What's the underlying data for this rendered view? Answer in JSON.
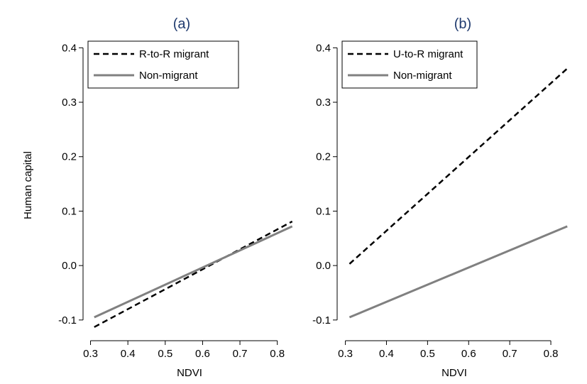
{
  "chart_data": [
    {
      "type": "line",
      "title": "(a)",
      "xlabel": "NDVI",
      "ylabel": "Human capital",
      "xlim": [
        0.28,
        0.85
      ],
      "ylim": [
        -0.125,
        0.42
      ],
      "xticks": [
        0.3,
        0.4,
        0.5,
        0.6,
        0.7,
        0.8
      ],
      "xtick_labels": [
        "0.3",
        "0.4",
        "0.5",
        "0.6",
        "0.7",
        "0.8"
      ],
      "yticks": [
        -0.1,
        0.0,
        0.1,
        0.2,
        0.3,
        0.4
      ],
      "ytick_labels": [
        "-0.1",
        "0.0",
        "0.1",
        "0.2",
        "0.3",
        "0.4"
      ],
      "grid": false,
      "legend_position": "top-left",
      "series": [
        {
          "name": "R-to-R migrant",
          "x": [
            0.31,
            0.84
          ],
          "y": [
            -0.113,
            0.081
          ],
          "color": "#000000",
          "style": "dashed"
        },
        {
          "name": "Non-migrant",
          "x": [
            0.31,
            0.84
          ],
          "y": [
            -0.095,
            0.072
          ],
          "color": "#808080",
          "style": "solid"
        }
      ]
    },
    {
      "type": "line",
      "title": "(b)",
      "xlabel": "NDVI",
      "ylabel": "",
      "xlim": [
        0.28,
        0.85
      ],
      "ylim": [
        -0.125,
        0.42
      ],
      "xticks": [
        0.3,
        0.4,
        0.5,
        0.6,
        0.7,
        0.8
      ],
      "xtick_labels": [
        "0.3",
        "0.4",
        "0.5",
        "0.6",
        "0.7",
        "0.8"
      ],
      "yticks": [
        -0.1,
        0.0,
        0.1,
        0.2,
        0.3,
        0.4
      ],
      "ytick_labels": [
        "-0.1",
        "0.0",
        "0.1",
        "0.2",
        "0.3",
        "0.4"
      ],
      "grid": false,
      "legend_position": "top-left",
      "series": [
        {
          "name": "U-to-R migrant",
          "x": [
            0.31,
            0.84
          ],
          "y": [
            0.003,
            0.362
          ],
          "color": "#000000",
          "style": "dashed"
        },
        {
          "name": "Non-migrant",
          "x": [
            0.31,
            0.84
          ],
          "y": [
            -0.095,
            0.072
          ],
          "color": "#808080",
          "style": "solid"
        }
      ]
    }
  ]
}
